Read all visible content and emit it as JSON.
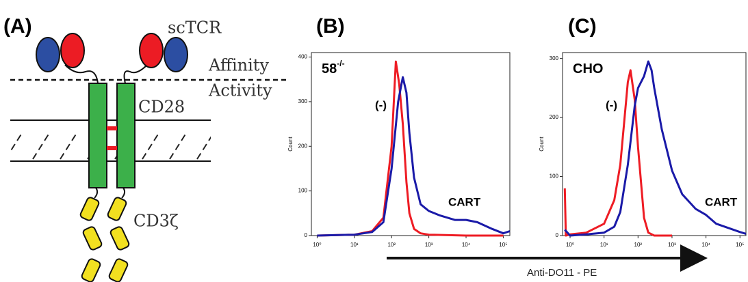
{
  "diagram": {
    "panel_label": "(A)",
    "sctcr": "scTCR",
    "affinity": "Affinity",
    "activity": "Activity",
    "cd28": "CD28",
    "cd3": "CD3ζ"
  },
  "x_axis_label": "Anti-DO11 - PE",
  "chart_data": [
    {
      "type": "line",
      "panel_label": "(B)",
      "label": "58",
      "label_sup": "-/-",
      "y_label": "Count",
      "xscale": "log",
      "xlim": [
        0.7,
        150000
      ],
      "ylim": [
        0,
        410
      ],
      "xticks": [
        {
          "value": 1,
          "label": "10⁰"
        },
        {
          "value": 10,
          "label": "10¹"
        },
        {
          "value": 100,
          "label": "10²"
        },
        {
          "value": 1000,
          "label": "10³"
        },
        {
          "value": 10000,
          "label": "10⁴"
        },
        {
          "value": 100000,
          "label": "10⁵"
        }
      ],
      "yticks": [
        0,
        100,
        200,
        300,
        400
      ],
      "series": [
        {
          "name": "(-)",
          "color": "#ee1c24",
          "x": [
            1,
            10,
            30,
            60,
            100,
            130,
            160,
            200,
            250,
            300,
            400,
            600,
            1000,
            10000,
            100000
          ],
          "values": [
            0,
            2,
            10,
            40,
            200,
            390,
            340,
            250,
            120,
            50,
            15,
            5,
            2,
            0,
            0
          ]
        },
        {
          "name": "CART",
          "color": "#1a1aa8",
          "x": [
            1,
            10,
            30,
            60,
            100,
            150,
            200,
            250,
            300,
            400,
            600,
            1000,
            2000,
            5000,
            10000,
            20000,
            50000,
            100000,
            150000
          ],
          "values": [
            0,
            2,
            8,
            30,
            150,
            300,
            355,
            320,
            230,
            130,
            70,
            55,
            45,
            35,
            35,
            30,
            15,
            5,
            10
          ]
        }
      ]
    },
    {
      "type": "line",
      "panel_label": "(C)",
      "label": "CHO",
      "y_label": "Count",
      "xscale": "log",
      "xlim": [
        0.6,
        150000
      ],
      "ylim": [
        0,
        310
      ],
      "xticks": [
        {
          "value": 1,
          "label": "10⁰"
        },
        {
          "value": 10,
          "label": "10¹"
        },
        {
          "value": 100,
          "label": "10²"
        },
        {
          "value": 1000,
          "label": "10³"
        },
        {
          "value": 10000,
          "label": "10⁴"
        },
        {
          "value": 100000,
          "label": "10⁵"
        }
      ],
      "yticks": [
        0,
        100,
        200,
        300
      ],
      "series": [
        {
          "name": "(-)",
          "color": "#ee1c24",
          "x": [
            0.7,
            0.75,
            1,
            3,
            10,
            20,
            30,
            50,
            60,
            80,
            100,
            150,
            200,
            300,
            1000
          ],
          "values": [
            80,
            0,
            2,
            5,
            20,
            60,
            120,
            260,
            280,
            230,
            150,
            30,
            5,
            0,
            0
          ]
        },
        {
          "name": "CART",
          "color": "#1a1aa8",
          "x": [
            0.7,
            1,
            3,
            10,
            20,
            30,
            50,
            80,
            100,
            150,
            200,
            250,
            300,
            500,
            1000,
            2000,
            5000,
            10000,
            20000,
            50000,
            100000,
            150000
          ],
          "values": [
            10,
            0,
            2,
            5,
            15,
            40,
            120,
            220,
            250,
            270,
            295,
            280,
            250,
            180,
            110,
            70,
            45,
            35,
            20,
            12,
            6,
            3
          ]
        }
      ]
    }
  ]
}
